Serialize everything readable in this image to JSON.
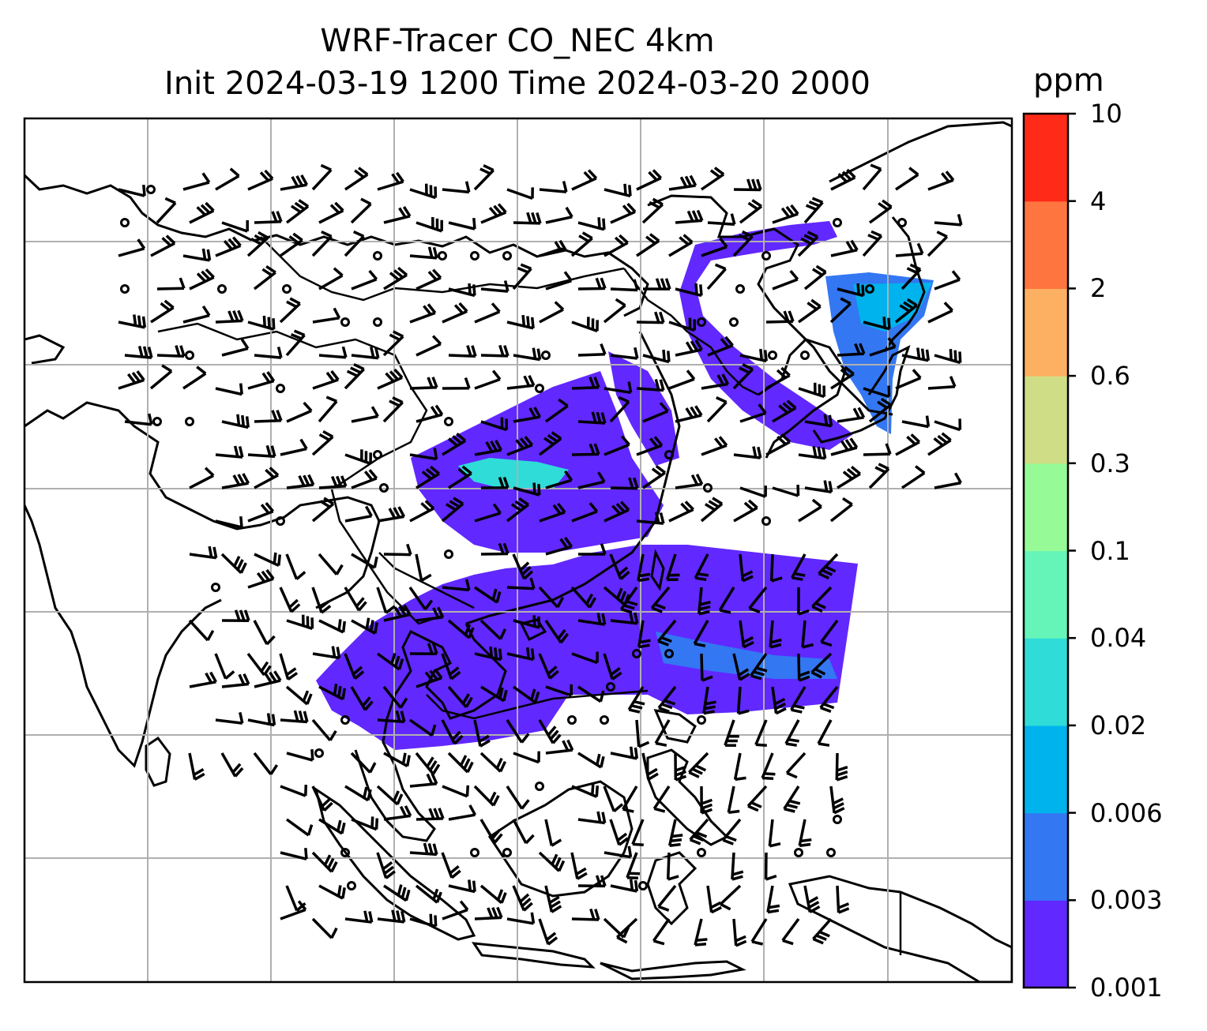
{
  "title": {
    "line1": "WRF-Tracer CO_NEC 4km",
    "line2": "Init 2024-03-19 1200 Time 2024-03-20 2000"
  },
  "colorbar": {
    "unit": "ppm",
    "levels": [
      "0.001",
      "0.003",
      "0.006",
      "0.02",
      "0.04",
      "0.1",
      "0.3",
      "0.6",
      "2",
      "4",
      "10"
    ],
    "colors": [
      "#6128ff",
      "#3377f3",
      "#00b3ec",
      "#2fdcd8",
      "#65f5b8",
      "#96fb96",
      "#cfde86",
      "#feb062",
      "#ff7540",
      "#ff2a18"
    ]
  },
  "map": {
    "gridlines": true,
    "features": [
      "coastlines",
      "country-borders",
      "wind-barbs",
      "co-tracer-concentration"
    ],
    "gridline_color": "#b0b0b0"
  }
}
